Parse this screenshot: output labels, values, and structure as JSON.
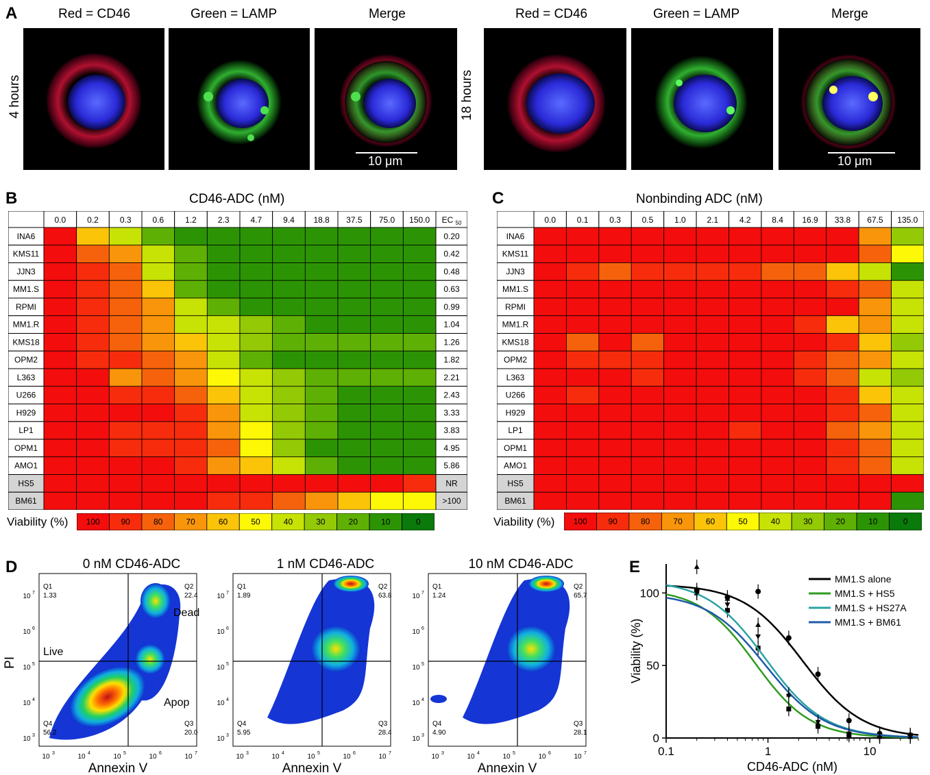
{
  "panel_letters": {
    "A": "A",
    "B": "B",
    "C": "C",
    "D": "D",
    "E": "E"
  },
  "panel_a": {
    "channels": [
      "Red = CD46",
      "Green = LAMP",
      "Merge"
    ],
    "time_4h": "4 hours",
    "time_18h": "18 hours",
    "scale_bar_label": "10 μm"
  },
  "panel_b": {
    "title": "CD46-ADC (nM)",
    "ec50_label": "EC",
    "ec50_sub": "50",
    "viability_label": "Viability (%)"
  },
  "panel_c": {
    "title": "Nonbinding ADC (nM)",
    "viability_label": "Viability (%)"
  },
  "viability_scale": {
    "values": [
      "100",
      "90",
      "80",
      "70",
      "60",
      "50",
      "40",
      "30",
      "20",
      "10",
      "0"
    ],
    "colors": [
      "#f40d0d",
      "#f62c0c",
      "#f6620b",
      "#f9950a",
      "#fbc409",
      "#fdf805",
      "#c7e205",
      "#93c905",
      "#5fb004",
      "#2c9404",
      "#0a7a0a"
    ]
  },
  "chart_data": [
    {
      "type": "heatmap",
      "title": "CD46-ADC (nM)",
      "columns": [
        "0.0",
        "0.2",
        "0.3",
        "0.6",
        "1.2",
        "2.3",
        "4.7",
        "9.4",
        "18.8",
        "37.5",
        "75.0",
        "150.0"
      ],
      "rows": [
        "INA6",
        "KMS11",
        "JJN3",
        "MM1.S",
        "RPMI",
        "MM1.R",
        "KMS18",
        "OPM2",
        "L363",
        "U266",
        "H929",
        "LP1",
        "OPM1",
        "AMO1",
        "HS5",
        "BM61"
      ],
      "shaded_rows": [
        "HS5",
        "BM61"
      ],
      "values": [
        [
          100,
          60,
          40,
          20,
          10,
          10,
          10,
          10,
          10,
          10,
          10,
          10
        ],
        [
          100,
          85,
          75,
          40,
          20,
          10,
          10,
          10,
          10,
          10,
          10,
          10
        ],
        [
          100,
          90,
          85,
          40,
          20,
          10,
          10,
          10,
          10,
          10,
          10,
          10
        ],
        [
          100,
          90,
          80,
          60,
          20,
          10,
          10,
          10,
          10,
          10,
          10,
          10
        ],
        [
          100,
          95,
          85,
          70,
          40,
          20,
          10,
          10,
          10,
          10,
          10,
          10
        ],
        [
          100,
          95,
          80,
          70,
          45,
          40,
          30,
          20,
          10,
          10,
          10,
          10
        ],
        [
          100,
          90,
          85,
          75,
          60,
          40,
          30,
          20,
          20,
          20,
          20,
          20
        ],
        [
          100,
          95,
          90,
          85,
          70,
          45,
          20,
          10,
          10,
          10,
          10,
          10
        ],
        [
          100,
          100,
          75,
          80,
          70,
          55,
          40,
          30,
          20,
          20,
          20,
          20
        ],
        [
          100,
          100,
          90,
          90,
          80,
          60,
          40,
          30,
          20,
          10,
          10,
          10
        ],
        [
          100,
          100,
          100,
          100,
          90,
          70,
          40,
          30,
          20,
          10,
          10,
          10
        ],
        [
          100,
          100,
          95,
          95,
          95,
          70,
          50,
          30,
          20,
          10,
          10,
          10
        ],
        [
          100,
          100,
          95,
          95,
          90,
          85,
          50,
          30,
          10,
          10,
          10,
          10
        ],
        [
          100,
          100,
          100,
          100,
          90,
          70,
          65,
          40,
          20,
          10,
          10,
          10
        ],
        [
          100,
          100,
          100,
          100,
          100,
          100,
          100,
          100,
          100,
          100,
          100,
          90
        ],
        [
          100,
          100,
          100,
          100,
          100,
          95,
          90,
          80,
          70,
          60,
          50,
          50
        ]
      ],
      "ec50": [
        "0.20",
        "0.42",
        "0.48",
        "0.63",
        "0.99",
        "1.04",
        "1.26",
        "1.82",
        "2.21",
        "2.43",
        "3.33",
        "3.83",
        "4.95",
        "5.86",
        "NR",
        ">100"
      ]
    },
    {
      "type": "heatmap",
      "title": "Nonbinding ADC (nM)",
      "columns": [
        "0.0",
        "0.1",
        "0.3",
        "0.5",
        "1.0",
        "2.1",
        "4.2",
        "8.4",
        "16.9",
        "33.8",
        "67.5",
        "135.0"
      ],
      "rows": [
        "INA6",
        "KMS11",
        "JJN3",
        "MM1.S",
        "RPMI",
        "MM1.R",
        "KMS18",
        "OPM2",
        "L363",
        "U266",
        "H929",
        "LP1",
        "OPM1",
        "AMO1",
        "HS5",
        "BM61"
      ],
      "shaded_rows": [
        "HS5",
        "BM61"
      ],
      "values": [
        [
          100,
          100,
          100,
          100,
          100,
          100,
          100,
          100,
          100,
          100,
          70,
          30
        ],
        [
          100,
          100,
          100,
          100,
          100,
          100,
          100,
          100,
          100,
          100,
          85,
          50
        ],
        [
          100,
          90,
          80,
          90,
          90,
          95,
          90,
          85,
          80,
          65,
          40,
          10
        ],
        [
          100,
          100,
          100,
          100,
          100,
          100,
          100,
          100,
          100,
          95,
          80,
          40
        ],
        [
          100,
          100,
          100,
          100,
          100,
          100,
          100,
          100,
          100,
          100,
          75,
          40
        ],
        [
          100,
          100,
          100,
          100,
          100,
          100,
          100,
          100,
          90,
          60,
          75,
          40
        ],
        [
          100,
          85,
          100,
          85,
          100,
          100,
          100,
          100,
          100,
          90,
          60,
          35
        ],
        [
          100,
          90,
          90,
          95,
          100,
          100,
          100,
          100,
          90,
          80,
          75,
          40
        ],
        [
          100,
          100,
          100,
          90,
          100,
          100,
          100,
          100,
          90,
          85,
          45,
          30
        ],
        [
          100,
          90,
          100,
          100,
          100,
          100,
          100,
          100,
          100,
          90,
          60,
          40
        ],
        [
          100,
          100,
          100,
          100,
          100,
          100,
          100,
          100,
          100,
          95,
          85,
          45
        ],
        [
          100,
          100,
          100,
          100,
          100,
          100,
          95,
          100,
          100,
          80,
          75,
          40
        ],
        [
          100,
          100,
          100,
          100,
          100,
          100,
          100,
          100,
          100,
          95,
          80,
          40
        ],
        [
          100,
          100,
          100,
          100,
          100,
          100,
          100,
          100,
          100,
          95,
          80,
          40
        ],
        [
          100,
          100,
          100,
          100,
          100,
          100,
          100,
          100,
          100,
          100,
          100,
          100
        ],
        [
          100,
          100,
          100,
          100,
          100,
          100,
          100,
          100,
          100,
          100,
          100,
          10
        ]
      ]
    },
    {
      "type": "scatter",
      "panel": "D",
      "plots": [
        {
          "title": "0 nM CD46-ADC",
          "Q1": "1.33",
          "Q2": "22.4",
          "Q3": "20.0",
          "Q4": "56.2"
        },
        {
          "title": "1 nM CD46-ADC",
          "Q1": "1.89",
          "Q2": "63.8",
          "Q3": "28.4",
          "Q4": "5.95"
        },
        {
          "title": "10 nM CD46-ADC",
          "Q1": "1.24",
          "Q2": "65.7",
          "Q3": "28.1",
          "Q4": "4.90"
        }
      ],
      "quadrant_names": {
        "Q1": "Q1",
        "Q2": "Q2",
        "Q3": "Q3",
        "Q4": "Q4"
      },
      "region_labels": {
        "dead": "Dead",
        "live": "Live",
        "apop": "Apop"
      },
      "xlabel": "Annexin V",
      "ylabel": "PI",
      "xticks": [
        "10",
        "10",
        "10",
        "10",
        "10"
      ],
      "xtick_exp": [
        "3",
        "4",
        "5",
        "6",
        "7"
      ],
      "yticks": [
        "10",
        "10",
        "10",
        "10",
        "10"
      ],
      "ytick_exp": [
        "3",
        "4",
        "5",
        "6",
        "7"
      ]
    },
    {
      "type": "line",
      "panel": "E",
      "xlabel": "CD46-ADC (nM)",
      "ylabel": "Viability (%)",
      "xscale": "log",
      "xlim": [
        0.1,
        30
      ],
      "ylim": [
        0,
        120
      ],
      "xtick_labels": [
        "0.1",
        "1",
        "10"
      ],
      "ytick_labels": [
        "0",
        "50",
        "100"
      ],
      "legend_position": "top-right",
      "series": [
        {
          "name": "MM1.S alone",
          "color": "#000000",
          "ec50": 2.2,
          "top": 106,
          "hill": 1.5,
          "points": [
            [
              0.2,
              102
            ],
            [
              0.4,
              97
            ],
            [
              0.8,
              101
            ],
            [
              1.6,
              69
            ],
            [
              3.1,
              44
            ],
            [
              6.25,
              12
            ],
            [
              12.5,
              3
            ],
            [
              25,
              2
            ]
          ]
        },
        {
          "name": "MM1.S + HS5",
          "color": "#2e9a1f",
          "ec50": 0.75,
          "top": 103,
          "hill": 1.6,
          "points": [
            [
              0.2,
              100
            ],
            [
              0.4,
              88
            ],
            [
              0.8,
              62
            ],
            [
              1.6,
              20
            ],
            [
              3.1,
              8
            ],
            [
              6.25,
              2
            ],
            [
              12.5,
              1
            ],
            [
              25,
              1
            ]
          ]
        },
        {
          "name": "MM1.S + HS27A",
          "color": "#2aa3a3",
          "ec50": 0.95,
          "top": 109,
          "hill": 1.5,
          "points": [
            [
              0.2,
              100
            ],
            [
              0.4,
              92
            ],
            [
              0.8,
              70
            ],
            [
              1.6,
              29
            ],
            [
              3.1,
              11
            ],
            [
              6.25,
              3
            ],
            [
              12.5,
              2
            ],
            [
              25,
              2
            ]
          ]
        },
        {
          "name": "MM1.S + BM61",
          "color": "#1f5aa8",
          "ec50": 0.95,
          "top": 100,
          "hill": 1.5,
          "points": [
            [
              0.2,
              118
            ],
            [
              0.4,
              96
            ],
            [
              0.8,
              78
            ],
            [
              1.6,
              30
            ],
            [
              3.1,
              10
            ],
            [
              6.25,
              3
            ],
            [
              12.5,
              1
            ],
            [
              25,
              1
            ]
          ]
        }
      ]
    }
  ]
}
